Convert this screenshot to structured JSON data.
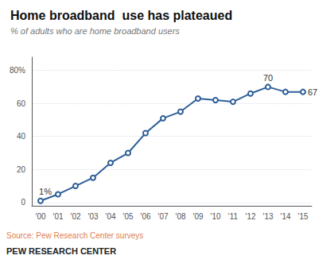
{
  "chart_data": {
    "type": "line",
    "title": "Home broadband  use has plateaued",
    "subtitle": "% of adults who are home broadband users",
    "source": "Source: Pew Research Center surveys",
    "footer": "PEW RESEARCH CENTER",
    "categories": [
      "'00",
      "'01",
      "'02",
      "'03",
      "'04",
      "'05",
      "'06",
      "'07",
      "'08",
      "'09",
      "'10",
      "'11",
      "'12",
      "'13",
      "'14",
      "'15"
    ],
    "values": [
      1,
      5,
      10,
      15,
      24,
      30,
      42,
      51,
      55,
      63,
      62,
      61,
      66,
      70,
      67,
      67
    ],
    "color": "#2E5F99",
    "marker": "open circle",
    "ylim": [
      -2,
      88
    ],
    "yticks": [
      0,
      20,
      40,
      60,
      {
        "value": 80,
        "label": "80%"
      }
    ],
    "grid": true,
    "annotations": [
      {
        "text": "1%",
        "x": "'00",
        "y": 1
      },
      {
        "text": "70",
        "x": "'13",
        "y": 70
      },
      {
        "text": "67",
        "x": "'15",
        "y": 67
      }
    ]
  }
}
